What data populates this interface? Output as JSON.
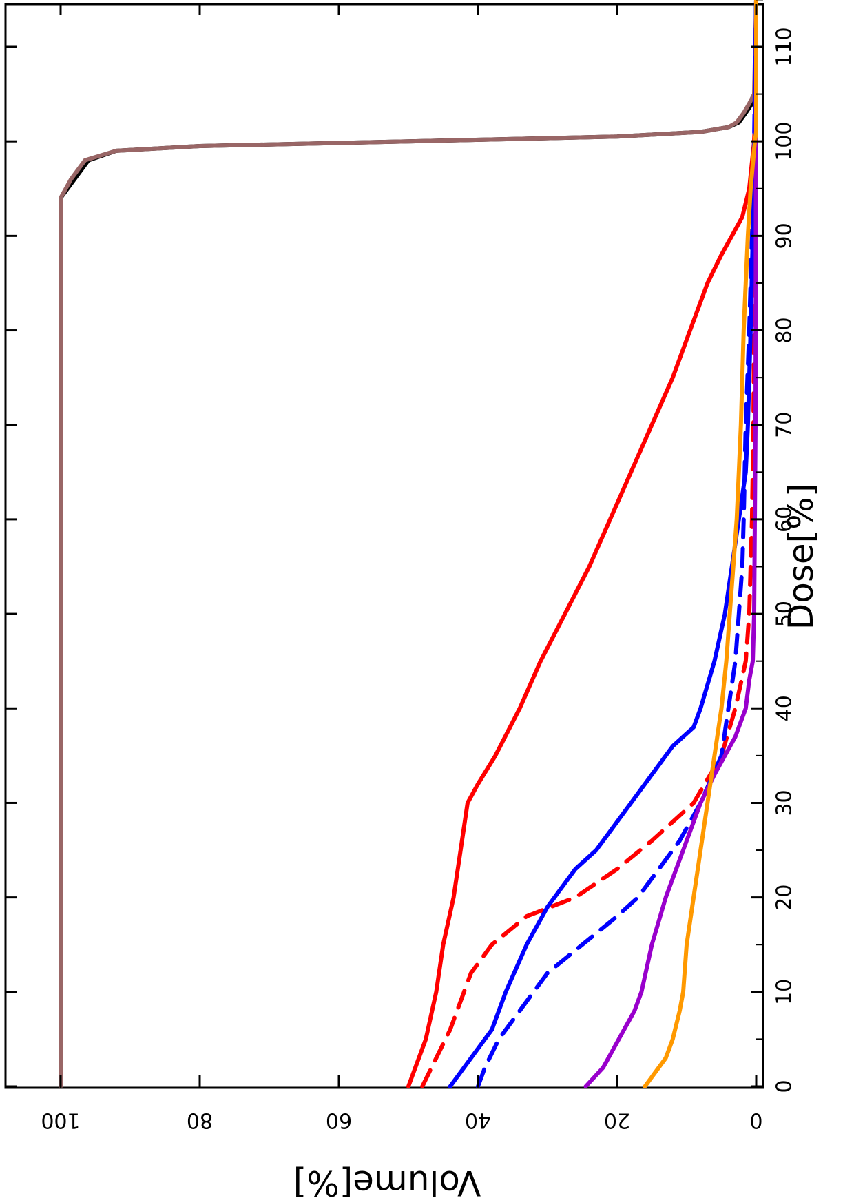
{
  "chart_data": {
    "type": "line",
    "orientation": "rotated-90-clockwise",
    "xlabel": "Dose[%]",
    "ylabel": "Volume[%]",
    "xlim": [
      0,
      115
    ],
    "ylim": [
      0,
      100
    ],
    "xticks": [
      "0",
      "10",
      "20",
      "30",
      "40",
      "50",
      "60",
      "70",
      "80",
      "90",
      "100",
      "110"
    ],
    "yticks": [
      "0",
      "20",
      "40",
      "60",
      "80",
      "100"
    ],
    "grid": false,
    "legend": "none",
    "series": [
      {
        "color": "#000000",
        "dash": "solid",
        "points": [
          [
            0,
            100
          ],
          [
            94,
            100
          ],
          [
            96,
            98
          ],
          [
            98,
            96
          ],
          [
            99,
            92
          ],
          [
            99.5,
            80
          ],
          [
            100,
            50
          ],
          [
            100.5,
            20
          ],
          [
            101,
            8
          ],
          [
            101.5,
            4
          ],
          [
            102,
            2.5
          ],
          [
            103,
            1.5
          ],
          [
            104,
            0.6
          ],
          [
            105,
            0.2
          ],
          [
            115,
            0
          ]
        ]
      },
      {
        "color": "#996666",
        "dash": "solid",
        "points": [
          [
            0,
            100
          ],
          [
            94,
            100
          ],
          [
            96,
            98.5
          ],
          [
            98,
            96.5
          ],
          [
            99,
            92
          ],
          [
            99.5,
            80
          ],
          [
            100,
            50
          ],
          [
            100.5,
            20
          ],
          [
            101,
            8
          ],
          [
            101.5,
            4
          ],
          [
            102,
            2.8
          ],
          [
            103,
            1.8
          ],
          [
            104,
            1
          ],
          [
            105,
            0.3
          ],
          [
            115,
            0
          ]
        ]
      },
      {
        "color": "#ff0000",
        "dash": "solid",
        "points": [
          [
            0,
            50
          ],
          [
            2,
            49
          ],
          [
            5,
            47.5
          ],
          [
            10,
            46
          ],
          [
            15,
            45
          ],
          [
            20,
            43.5
          ],
          [
            25,
            42.5
          ],
          [
            30,
            41.5
          ],
          [
            32,
            40
          ],
          [
            35,
            37.5
          ],
          [
            40,
            34
          ],
          [
            45,
            31
          ],
          [
            50,
            27.5
          ],
          [
            55,
            24
          ],
          [
            60,
            21
          ],
          [
            65,
            18
          ],
          [
            70,
            15
          ],
          [
            75,
            12
          ],
          [
            80,
            9.5
          ],
          [
            85,
            7
          ],
          [
            88,
            5
          ],
          [
            90,
            3.5
          ],
          [
            92,
            2
          ],
          [
            95,
            1
          ],
          [
            100,
            0.3
          ],
          [
            105,
            0
          ],
          [
            115,
            0
          ]
        ]
      },
      {
        "color": "#ff0000",
        "dash": "dashed",
        "points": [
          [
            0,
            48
          ],
          [
            3,
            46
          ],
          [
            6,
            44
          ],
          [
            10,
            42
          ],
          [
            12,
            41
          ],
          [
            15,
            38
          ],
          [
            18,
            33
          ],
          [
            20,
            26
          ],
          [
            23,
            20
          ],
          [
            26,
            15
          ],
          [
            30,
            9
          ],
          [
            35,
            5
          ],
          [
            40,
            3
          ],
          [
            45,
            1.5
          ],
          [
            50,
            1
          ],
          [
            60,
            0.6
          ],
          [
            70,
            0.4
          ],
          [
            80,
            0.3
          ],
          [
            90,
            0.2
          ],
          [
            100,
            0.1
          ],
          [
            115,
            0
          ]
        ]
      },
      {
        "color": "#0000ff",
        "dash": "solid",
        "points": [
          [
            0,
            44
          ],
          [
            2,
            42
          ],
          [
            4,
            40
          ],
          [
            6,
            38
          ],
          [
            10,
            36
          ],
          [
            15,
            33
          ],
          [
            19,
            30
          ],
          [
            21,
            28
          ],
          [
            23,
            26
          ],
          [
            25,
            23
          ],
          [
            28,
            20
          ],
          [
            30,
            18
          ],
          [
            33,
            15
          ],
          [
            36,
            12
          ],
          [
            38,
            9
          ],
          [
            40,
            8
          ],
          [
            45,
            6
          ],
          [
            50,
            4.5
          ],
          [
            55,
            3.5
          ],
          [
            60,
            2.5
          ],
          [
            65,
            1.5
          ],
          [
            70,
            1.2
          ],
          [
            80,
            0.8
          ],
          [
            90,
            0.5
          ],
          [
            100,
            0.2
          ],
          [
            115,
            0
          ]
        ]
      },
      {
        "color": "#0000ff",
        "dash": "dashed",
        "points": [
          [
            0,
            40
          ],
          [
            2,
            39
          ],
          [
            5,
            37
          ],
          [
            8,
            34
          ],
          [
            10,
            32
          ],
          [
            12,
            30
          ],
          [
            15,
            25
          ],
          [
            18,
            20
          ],
          [
            20,
            17
          ],
          [
            23,
            14
          ],
          [
            26,
            11
          ],
          [
            30,
            8
          ],
          [
            35,
            5
          ],
          [
            40,
            4
          ],
          [
            45,
            3
          ],
          [
            50,
            2.5
          ],
          [
            55,
            2
          ],
          [
            60,
            1.8
          ],
          [
            70,
            1.5
          ],
          [
            80,
            1
          ],
          [
            90,
            0.6
          ],
          [
            100,
            0.3
          ],
          [
            115,
            0
          ]
        ]
      },
      {
        "color": "#9900cc",
        "dash": "solid",
        "points": [
          [
            0,
            24.5
          ],
          [
            2,
            22
          ],
          [
            4,
            20.5
          ],
          [
            6,
            19
          ],
          [
            8,
            17.5
          ],
          [
            10,
            16.5
          ],
          [
            15,
            15
          ],
          [
            20,
            13
          ],
          [
            25,
            10.5
          ],
          [
            30,
            8
          ],
          [
            33,
            6
          ],
          [
            35,
            4.5
          ],
          [
            37,
            3
          ],
          [
            40,
            1.5
          ],
          [
            43,
            1
          ],
          [
            45,
            0.5
          ],
          [
            50,
            0.3
          ],
          [
            60,
            0.2
          ],
          [
            70,
            0.1
          ],
          [
            115,
            0
          ]
        ]
      },
      {
        "color": "#ff9900",
        "dash": "solid",
        "points": [
          [
            0,
            16
          ],
          [
            1,
            15
          ],
          [
            3,
            13
          ],
          [
            5,
            12
          ],
          [
            8,
            11
          ],
          [
            10,
            10.5
          ],
          [
            15,
            10
          ],
          [
            20,
            9
          ],
          [
            25,
            8
          ],
          [
            30,
            7
          ],
          [
            35,
            6
          ],
          [
            40,
            5
          ],
          [
            45,
            4.3
          ],
          [
            50,
            3.8
          ],
          [
            55,
            3.3
          ],
          [
            60,
            2.8
          ],
          [
            65,
            2.5
          ],
          [
            70,
            2.2
          ],
          [
            75,
            2
          ],
          [
            80,
            1.8
          ],
          [
            85,
            1.5
          ],
          [
            90,
            1.2
          ],
          [
            95,
            0.8
          ],
          [
            100,
            0.2
          ],
          [
            101,
            0
          ],
          [
            115,
            0
          ]
        ]
      }
    ]
  }
}
